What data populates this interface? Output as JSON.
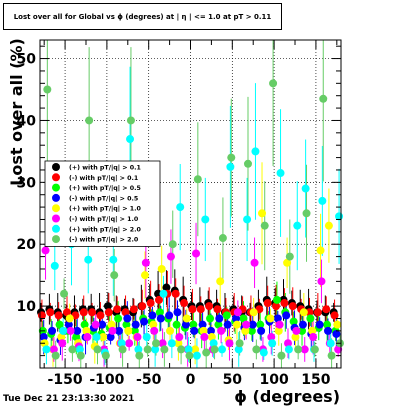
{
  "title": "Lost over all for Global vs ϕ (degrees) at | η | <= 1.0 at pT > 0.11",
  "timestamp": "Tue Dec 21 23:13:30 2021",
  "colors": {
    "frame": "#000000",
    "grid": "#000000"
  },
  "chart_data": {
    "type": "scatter",
    "xlabel": "ϕ (degrees)",
    "ylabel": "Lost over all (%)",
    "xlim": [
      -180,
      180
    ],
    "ylim": [
      0,
      53
    ],
    "xticks": [
      -150,
      -100,
      -50,
      0,
      50,
      100,
      150
    ],
    "yticks": [
      10,
      20,
      30,
      40,
      50
    ],
    "grid": true,
    "legend_position": "middle-left",
    "series": [
      {
        "name": "(+) with pT/|q| > 0.1",
        "color": "#000000",
        "points": [
          [
            -175,
            9
          ],
          [
            -165,
            9.5
          ],
          [
            -155,
            9
          ],
          [
            -145,
            8.5
          ],
          [
            -135,
            9
          ],
          [
            -125,
            9.5
          ],
          [
            -115,
            9.5
          ],
          [
            -105,
            9
          ],
          [
            -95,
            10
          ],
          [
            -85,
            9
          ],
          [
            -75,
            9.5
          ],
          [
            -65,
            9
          ],
          [
            -55,
            10
          ],
          [
            -45,
            11
          ],
          [
            -35,
            12
          ],
          [
            -25,
            13
          ],
          [
            -15,
            12.5
          ],
          [
            -5,
            11
          ],
          [
            5,
            10
          ],
          [
            15,
            10
          ],
          [
            25,
            10.5
          ],
          [
            35,
            10
          ],
          [
            45,
            9
          ],
          [
            55,
            9.5
          ],
          [
            65,
            9
          ],
          [
            75,
            9
          ],
          [
            85,
            10
          ],
          [
            95,
            11
          ],
          [
            105,
            10.5
          ],
          [
            115,
            11
          ],
          [
            125,
            10.5
          ],
          [
            135,
            10
          ],
          [
            145,
            9.5
          ],
          [
            155,
            9
          ],
          [
            165,
            9
          ],
          [
            175,
            9
          ]
        ]
      },
      {
        "name": "(-) with pT/|q| > 0.1",
        "color": "#ff0000",
        "points": [
          [
            -175,
            8.5
          ],
          [
            -165,
            9
          ],
          [
            -155,
            8.5
          ],
          [
            -145,
            9
          ],
          [
            -135,
            8.5
          ],
          [
            -125,
            9
          ],
          [
            -115,
            9
          ],
          [
            -105,
            8.5
          ],
          [
            -95,
            9
          ],
          [
            -85,
            9.5
          ],
          [
            -75,
            9
          ],
          [
            -65,
            9.5
          ],
          [
            -55,
            10
          ],
          [
            -45,
            10.5
          ],
          [
            -35,
            11
          ],
          [
            -25,
            12
          ],
          [
            -15,
            12
          ],
          [
            -5,
            10.5
          ],
          [
            5,
            9.5
          ],
          [
            15,
            9.5
          ],
          [
            25,
            10
          ],
          [
            35,
            9.5
          ],
          [
            45,
            9
          ],
          [
            55,
            9
          ],
          [
            65,
            9.5
          ],
          [
            75,
            9
          ],
          [
            85,
            9.5
          ],
          [
            95,
            10.5
          ],
          [
            105,
            10
          ],
          [
            115,
            10.5
          ],
          [
            125,
            10
          ],
          [
            135,
            9.5
          ],
          [
            145,
            9
          ],
          [
            155,
            9
          ],
          [
            165,
            9.5
          ],
          [
            175,
            8.5
          ]
        ]
      },
      {
        "name": "(+) with pT/|q| > 0.5",
        "color": "#00ff00",
        "points": [
          [
            -175,
            6
          ],
          [
            -165,
            5.5
          ],
          [
            -155,
            7
          ],
          [
            -145,
            6
          ],
          [
            -135,
            5
          ],
          [
            -125,
            7
          ],
          [
            -115,
            6
          ],
          [
            -105,
            5.5
          ],
          [
            -95,
            6.5
          ],
          [
            -85,
            8
          ],
          [
            -75,
            7
          ],
          [
            -65,
            6
          ],
          [
            -55,
            8
          ],
          [
            -45,
            7.5
          ],
          [
            -35,
            9
          ],
          [
            -25,
            8
          ],
          [
            -15,
            7
          ],
          [
            -5,
            6.5
          ],
          [
            5,
            7
          ],
          [
            15,
            6
          ],
          [
            25,
            8
          ],
          [
            35,
            7
          ],
          [
            45,
            8.5
          ],
          [
            55,
            7.5
          ],
          [
            65,
            8
          ],
          [
            75,
            6
          ],
          [
            85,
            7
          ],
          [
            95,
            8
          ],
          [
            105,
            11
          ],
          [
            115,
            9
          ],
          [
            125,
            7.5
          ],
          [
            135,
            6
          ],
          [
            145,
            8
          ],
          [
            155,
            6.5
          ],
          [
            165,
            7
          ],
          [
            175,
            6
          ]
        ]
      },
      {
        "name": "(-) with pT/|q| > 0.5",
        "color": "#0000ff",
        "points": [
          [
            -175,
            5
          ],
          [
            -165,
            6
          ],
          [
            -155,
            4.5
          ],
          [
            -145,
            7
          ],
          [
            -135,
            6
          ],
          [
            -125,
            5
          ],
          [
            -115,
            6.5
          ],
          [
            -105,
            7
          ],
          [
            -95,
            5
          ],
          [
            -85,
            6
          ],
          [
            -75,
            8
          ],
          [
            -65,
            7
          ],
          [
            -55,
            7.5
          ],
          [
            -45,
            8.5
          ],
          [
            -35,
            8
          ],
          [
            -25,
            8.5
          ],
          [
            -15,
            9
          ],
          [
            -5,
            7
          ],
          [
            5,
            6
          ],
          [
            15,
            7
          ],
          [
            25,
            6
          ],
          [
            35,
            8
          ],
          [
            45,
            7
          ],
          [
            55,
            8
          ],
          [
            65,
            6.5
          ],
          [
            75,
            7
          ],
          [
            85,
            6
          ],
          [
            95,
            7.5
          ],
          [
            105,
            8
          ],
          [
            115,
            8.5
          ],
          [
            125,
            6.5
          ],
          [
            135,
            7
          ],
          [
            145,
            5.5
          ],
          [
            155,
            7
          ],
          [
            165,
            6
          ],
          [
            175,
            5.5
          ]
        ]
      },
      {
        "name": "(+) with pT/|q| > 1.0",
        "color": "#ffff00",
        "points": [
          [
            -175,
            4
          ],
          [
            -165,
            3
          ],
          [
            -155,
            5
          ],
          [
            -145,
            8
          ],
          [
            -135,
            4
          ],
          [
            -125,
            6
          ],
          [
            -115,
            3.5
          ],
          [
            -105,
            5
          ],
          [
            -95,
            7
          ],
          [
            -85,
            4
          ],
          [
            -75,
            6
          ],
          [
            -65,
            5
          ],
          [
            -55,
            15
          ],
          [
            -45,
            7
          ],
          [
            -35,
            16
          ],
          [
            -25,
            6
          ],
          [
            -15,
            4
          ],
          [
            -5,
            8
          ],
          [
            5,
            3
          ],
          [
            15,
            6
          ],
          [
            25,
            5
          ],
          [
            35,
            14
          ],
          [
            45,
            4.5
          ],
          [
            55,
            7
          ],
          [
            65,
            6
          ],
          [
            75,
            9
          ],
          [
            85,
            25
          ],
          [
            95,
            8
          ],
          [
            105,
            6
          ],
          [
            115,
            17
          ],
          [
            125,
            5
          ],
          [
            135,
            9
          ],
          [
            145,
            6
          ],
          [
            155,
            19
          ],
          [
            165,
            23
          ],
          [
            175,
            7
          ]
        ]
      },
      {
        "name": "(-) with pT/|q| > 1.0",
        "color": "#ff00ff",
        "points": [
          [
            -175,
            19
          ],
          [
            -165,
            3
          ],
          [
            -155,
            4
          ],
          [
            -145,
            6
          ],
          [
            -135,
            3.5
          ],
          [
            -125,
            5
          ],
          [
            -115,
            7
          ],
          [
            -105,
            3
          ],
          [
            -95,
            6
          ],
          [
            -85,
            4
          ],
          [
            -75,
            4
          ],
          [
            -65,
            5
          ],
          [
            -55,
            17
          ],
          [
            -45,
            6
          ],
          [
            -35,
            4
          ],
          [
            -25,
            18
          ],
          [
            -15,
            5
          ],
          [
            -5,
            3
          ],
          [
            5,
            18.5
          ],
          [
            15,
            5
          ],
          [
            25,
            3
          ],
          [
            35,
            6
          ],
          [
            45,
            4
          ],
          [
            55,
            9
          ],
          [
            65,
            7
          ],
          [
            75,
            17
          ],
          [
            85,
            3
          ],
          [
            95,
            5
          ],
          [
            105,
            7
          ],
          [
            115,
            4
          ],
          [
            125,
            6
          ],
          [
            135,
            3
          ],
          [
            145,
            5
          ],
          [
            155,
            14
          ],
          [
            165,
            4
          ],
          [
            175,
            3
          ]
        ]
      },
      {
        "name": "(+) with pT/|q| > 2.0",
        "color": "#00ffff",
        "points": [
          [
            -175,
            3
          ],
          [
            -165,
            16.5
          ],
          [
            -155,
            6
          ],
          [
            -145,
            20
          ],
          [
            -135,
            3
          ],
          [
            -125,
            17.5
          ],
          [
            -115,
            5
          ],
          [
            -105,
            2.5
          ],
          [
            -95,
            17.5
          ],
          [
            -85,
            4
          ],
          [
            -75,
            37
          ],
          [
            -65,
            3
          ],
          [
            -55,
            5
          ],
          [
            -45,
            3
          ],
          [
            -35,
            12
          ],
          [
            -25,
            4
          ],
          [
            -15,
            26
          ],
          [
            -5,
            3
          ],
          [
            5,
            2
          ],
          [
            15,
            24
          ],
          [
            25,
            4
          ],
          [
            35,
            3
          ],
          [
            45,
            32.5
          ],
          [
            55,
            3
          ],
          [
            65,
            24
          ],
          [
            75,
            35
          ],
          [
            85,
            2.5
          ],
          [
            95,
            4
          ],
          [
            105,
            31.5
          ],
          [
            115,
            3
          ],
          [
            125,
            23
          ],
          [
            135,
            29
          ],
          [
            145,
            3
          ],
          [
            155,
            27
          ],
          [
            165,
            4
          ],
          [
            175,
            24.5
          ]
        ]
      },
      {
        "name": "(-) with pT/|q| > 2.0",
        "color": "#66cc66",
        "points": [
          [
            -175,
            45
          ],
          [
            -165,
            2
          ],
          [
            -155,
            12
          ],
          [
            -145,
            3
          ],
          [
            -135,
            2
          ],
          [
            -125,
            40
          ],
          [
            -115,
            3
          ],
          [
            -105,
            2
          ],
          [
            -95,
            15
          ],
          [
            -85,
            3
          ],
          [
            -75,
            40
          ],
          [
            -65,
            2
          ],
          [
            -55,
            3
          ],
          [
            -45,
            4
          ],
          [
            -35,
            3
          ],
          [
            -25,
            20
          ],
          [
            -15,
            3
          ],
          [
            -5,
            2
          ],
          [
            5,
            30.5
          ],
          [
            15,
            2.5
          ],
          [
            25,
            3
          ],
          [
            35,
            21
          ],
          [
            45,
            34
          ],
          [
            55,
            4
          ],
          [
            65,
            33
          ],
          [
            75,
            3
          ],
          [
            85,
            23
          ],
          [
            95,
            46
          ],
          [
            105,
            2
          ],
          [
            115,
            18
          ],
          [
            125,
            3
          ],
          [
            135,
            25
          ],
          [
            145,
            3
          ],
          [
            155,
            43.5
          ],
          [
            165,
            2
          ],
          [
            175,
            4
          ]
        ]
      }
    ]
  }
}
